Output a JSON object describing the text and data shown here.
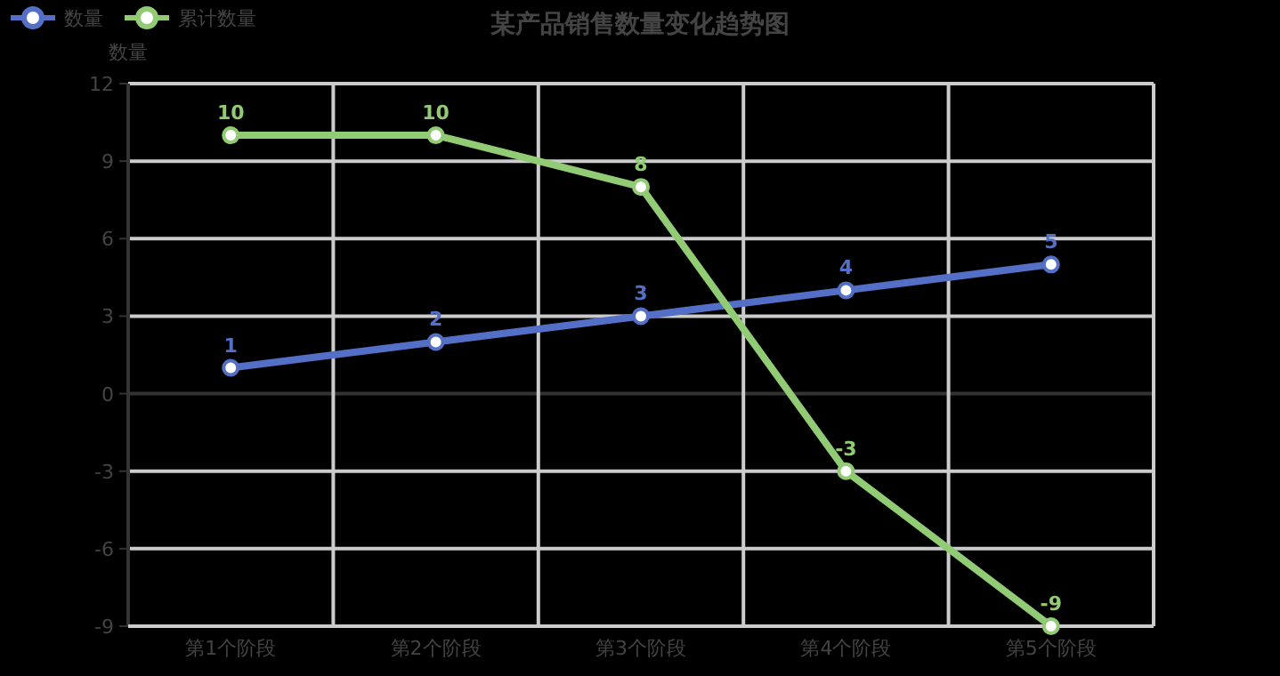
{
  "chart_data": {
    "type": "line",
    "title": "某产品销售数量变化趋势图",
    "ylabel": "数量",
    "categories": [
      "第1个阶段",
      "第2个阶段",
      "第3个阶段",
      "第4个阶段",
      "第5个阶段"
    ],
    "series": [
      {
        "name": "数量",
        "color": "#5470c6",
        "values": [
          1,
          2,
          3,
          4,
          5
        ]
      },
      {
        "name": "累计数量",
        "color": "#91cc75",
        "values": [
          10,
          10,
          8,
          -3,
          -9
        ]
      }
    ],
    "ylim": [
      -9,
      12
    ],
    "yticks": [
      -9,
      -6,
      -3,
      0,
      3,
      6,
      9,
      12
    ],
    "grid": true,
    "legend": "top left",
    "marker": "circle",
    "data_labels": true
  }
}
